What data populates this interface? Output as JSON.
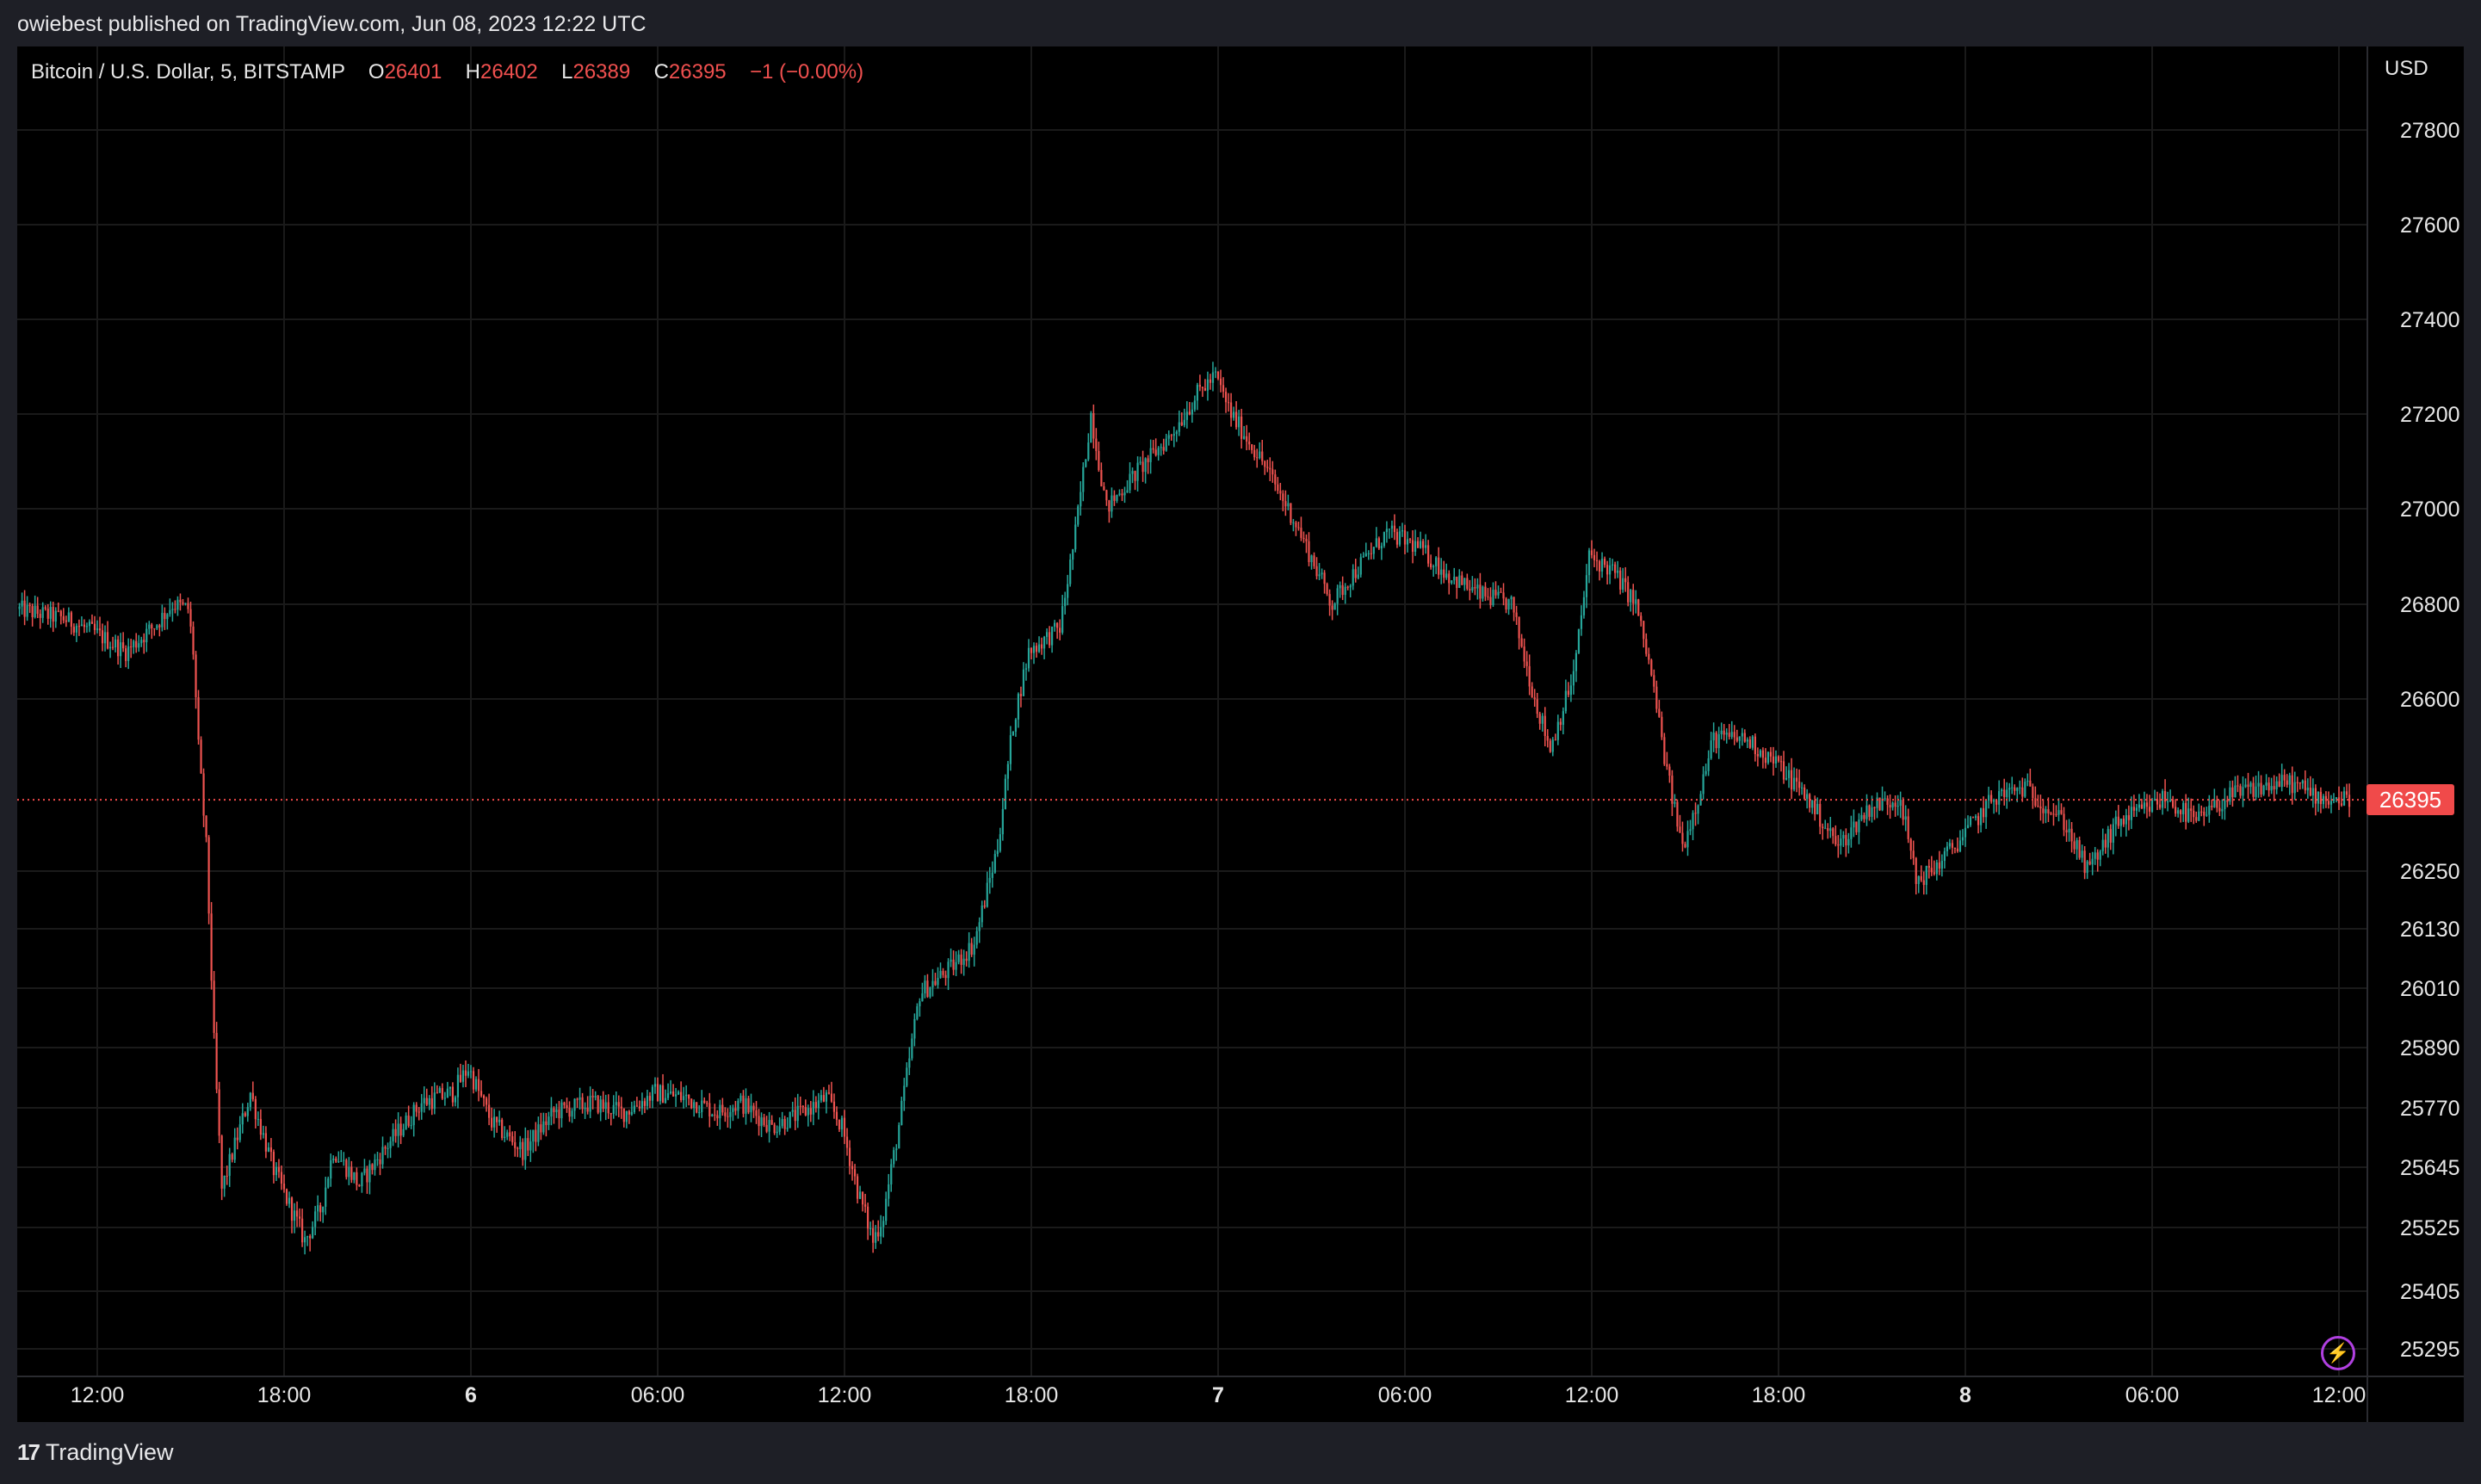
{
  "caption": "owiebest published on TradingView.com, Jun 08, 2023 12:22 UTC",
  "footer": {
    "logo_glyph": "17",
    "brand": "TradingView"
  },
  "legend": {
    "symbol": "Bitcoin / U.S. Dollar, 5, BITSTAMP",
    "open_label": "O",
    "open": "26401",
    "high_label": "H",
    "high": "26402",
    "low_label": "L",
    "low": "26389",
    "close_label": "C",
    "close": "26395",
    "change": "−1 (−0.00%)"
  },
  "currency": "USD",
  "last_price": "26395",
  "bolt_icon": "⚡",
  "colors": {
    "up": "#26a69a",
    "down": "#ef5350",
    "price_line": "#f04a4a",
    "grid": "#1a1a1a",
    "background": "#000000"
  },
  "chart_data": {
    "type": "candlestick",
    "symbol": "BTCUSD",
    "interval": "5",
    "exchange": "BITSTAMP",
    "y_axis": {
      "ticks": [
        27800,
        27600,
        27400,
        27200,
        27000,
        26800,
        26600,
        26250,
        26130,
        26010,
        25890,
        25770,
        25645,
        25525,
        25405,
        25295
      ],
      "tick_labels": [
        "27800",
        "27600",
        "27400",
        "27200",
        "27000",
        "26800",
        "26600",
        "26250",
        "26130",
        "26010",
        "25890",
        "25770",
        "25645",
        "25525",
        "25405",
        "25295"
      ],
      "current_value": 26395,
      "current_value_label": "26395"
    },
    "x_axis": {
      "ticks": [
        "2023-06-05 12:00",
        "2023-06-05 18:00",
        "2023-06-06 00:00",
        "2023-06-06 06:00",
        "2023-06-06 12:00",
        "2023-06-06 18:00",
        "2023-06-07 00:00",
        "2023-06-07 06:00",
        "2023-06-07 12:00",
        "2023-06-07 18:00",
        "2023-06-08 00:00",
        "2023-06-08 06:00",
        "2023-06-08 12:00"
      ],
      "tick_labels": [
        "12:00",
        "18:00",
        "6",
        "06:00",
        "12:00",
        "18:00",
        "7",
        "06:00",
        "12:00",
        "18:00",
        "8",
        "06:00",
        "12:00"
      ],
      "bold": [
        false,
        false,
        true,
        false,
        false,
        false,
        true,
        false,
        false,
        false,
        true,
        false,
        false
      ]
    },
    "price_path": {
      "time": [
        "2023-06-05 09:30",
        "2023-06-05 11:00",
        "2023-06-05 12:00",
        "2023-06-05 13:00",
        "2023-06-05 14:00",
        "2023-06-05 14:30",
        "2023-06-05 15:00",
        "2023-06-05 15:10",
        "2023-06-05 15:20",
        "2023-06-05 15:35",
        "2023-06-05 15:50",
        "2023-06-05 16:05",
        "2023-06-05 17:00",
        "2023-06-05 17:45",
        "2023-06-05 18:45",
        "2023-06-05 19:15",
        "2023-06-05 19:40",
        "2023-06-05 20:30",
        "2023-06-05 21:30",
        "2023-06-05 22:30",
        "2023-06-05 23:30",
        "2023-06-06 00:00",
        "2023-06-06 00:45",
        "2023-06-06 01:45",
        "2023-06-06 02:45",
        "2023-06-06 04:00",
        "2023-06-06 05:00",
        "2023-06-06 06:00",
        "2023-06-06 07:00",
        "2023-06-06 08:00",
        "2023-06-06 08:45",
        "2023-06-06 09:45",
        "2023-06-06 10:45",
        "2023-06-06 11:30",
        "2023-06-06 12:00",
        "2023-06-06 12:30",
        "2023-06-06 13:00",
        "2023-06-06 13:20",
        "2023-06-06 13:45",
        "2023-06-06 14:30",
        "2023-06-06 15:30",
        "2023-06-06 16:15",
        "2023-06-06 17:00",
        "2023-06-06 17:30",
        "2023-06-06 18:00",
        "2023-06-06 19:00",
        "2023-06-06 19:30",
        "2023-06-06 20:00",
        "2023-06-06 20:30",
        "2023-06-06 21:30",
        "2023-06-06 22:30",
        "2023-06-06 23:30",
        "2023-06-07 00:00",
        "2023-06-07 00:30",
        "2023-06-07 01:30",
        "2023-06-07 02:30",
        "2023-06-07 03:45",
        "2023-06-07 04:15",
        "2023-06-07 05:30",
        "2023-06-07 06:30",
        "2023-06-07 07:30",
        "2023-06-07 08:30",
        "2023-06-07 09:30",
        "2023-06-07 10:15",
        "2023-06-07 10:45",
        "2023-06-07 11:30",
        "2023-06-07 12:00",
        "2023-06-07 12:45",
        "2023-06-07 13:30",
        "2023-06-07 14:00",
        "2023-06-07 14:30",
        "2023-06-07 15:00",
        "2023-06-07 15:30",
        "2023-06-07 16:00",
        "2023-06-07 17:00",
        "2023-06-07 18:00",
        "2023-06-07 19:00",
        "2023-06-07 20:00",
        "2023-06-07 21:00",
        "2023-06-07 22:00",
        "2023-06-07 22:30",
        "2023-06-07 23:00",
        "2023-06-08 00:00",
        "2023-06-08 01:00",
        "2023-06-08 02:00",
        "2023-06-08 03:15",
        "2023-06-08 04:00",
        "2023-06-08 05:00",
        "2023-06-08 06:00",
        "2023-06-08 06:30",
        "2023-06-08 07:30",
        "2023-06-08 08:30",
        "2023-06-08 09:30",
        "2023-06-08 10:30",
        "2023-06-08 11:30",
        "2023-06-08 12:20"
      ],
      "price": [
        26790,
        26770,
        26740,
        26700,
        26760,
        26800,
        26790,
        26700,
        26500,
        26300,
        25900,
        25600,
        25800,
        25640,
        25500,
        25560,
        25680,
        25610,
        25700,
        25780,
        25800,
        25850,
        25740,
        25680,
        25760,
        25780,
        25760,
        25800,
        25790,
        25760,
        25780,
        25730,
        25760,
        25790,
        25730,
        25600,
        25500,
        25550,
        25700,
        26000,
        26050,
        26100,
        26300,
        26550,
        26700,
        26750,
        26950,
        27200,
        27000,
        27080,
        27150,
        27250,
        27280,
        27200,
        27100,
        26980,
        26800,
        26850,
        26950,
        26920,
        26860,
        26820,
        26800,
        26600,
        26500,
        26650,
        26900,
        26870,
        26800,
        26650,
        26450,
        26300,
        26400,
        26520,
        26520,
        26470,
        26400,
        26300,
        26380,
        26400,
        26230,
        26250,
        26320,
        26400,
        26420,
        26350,
        26250,
        26350,
        26380,
        26400,
        26350,
        26400,
        26420,
        26430,
        26400,
        26395
      ]
    },
    "last_candle": {
      "open": 26401,
      "high": 26402,
      "low": 26389,
      "close": 26395
    },
    "change": -1,
    "change_percent": -0.0,
    "grid": true,
    "legend_position": "top-left"
  }
}
